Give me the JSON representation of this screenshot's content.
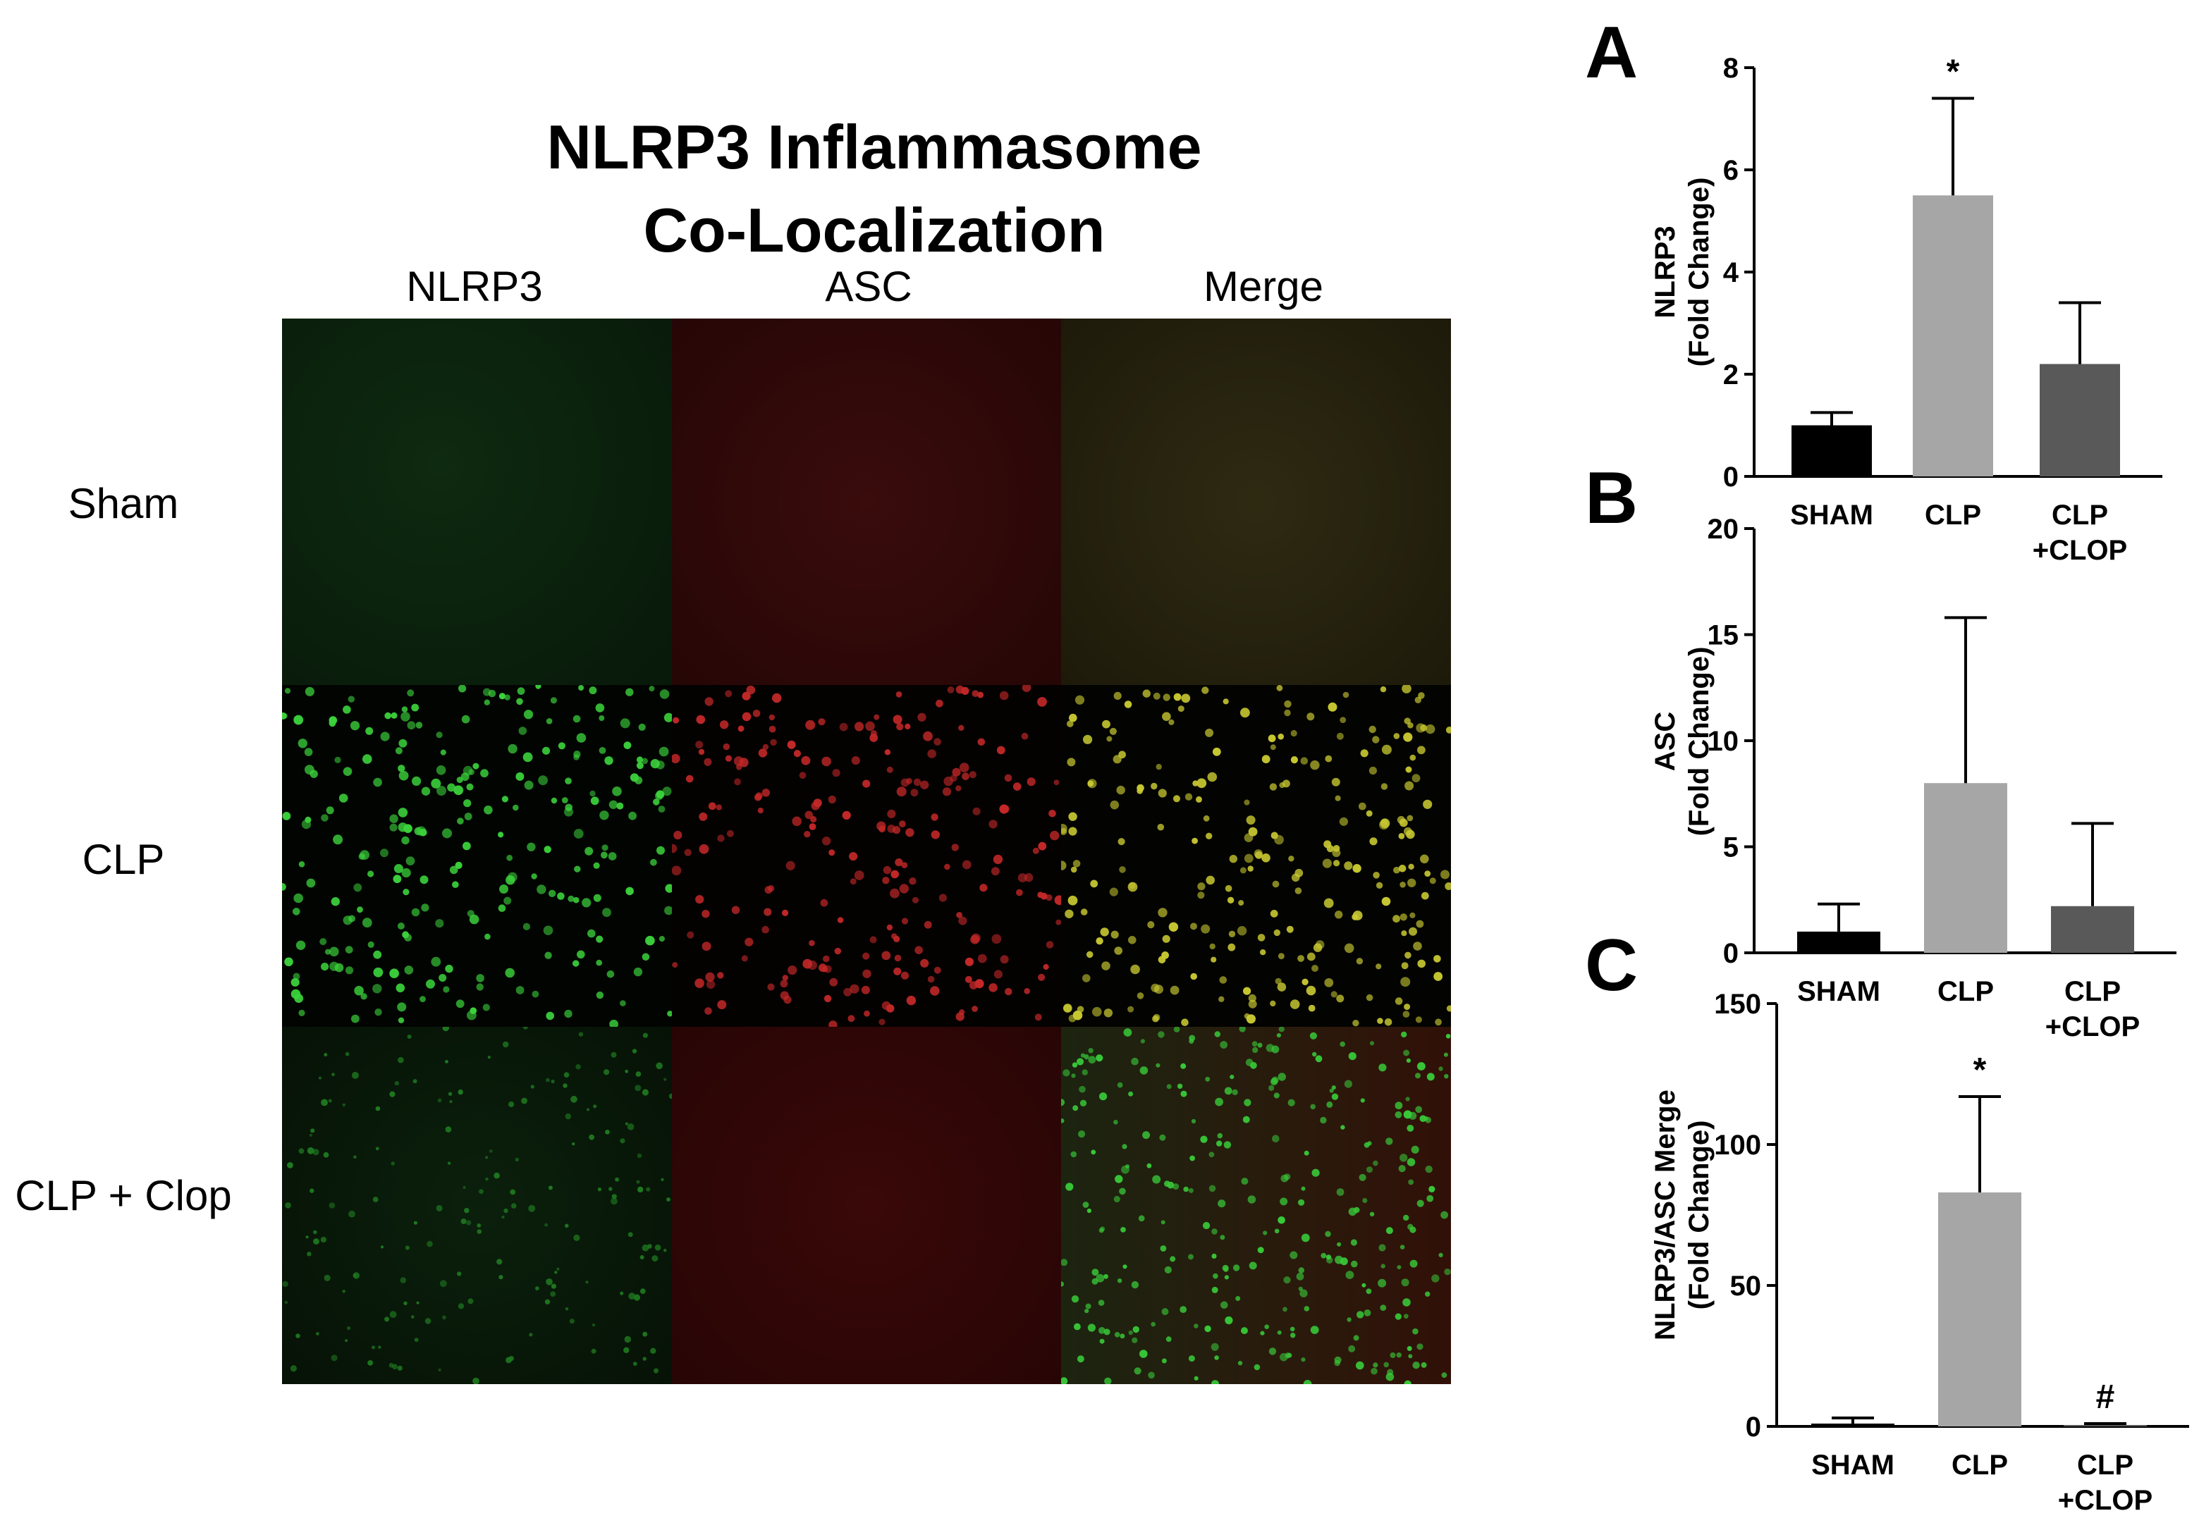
{
  "figure": {
    "title_line1": "NLRP3 Inflammasome",
    "title_line2": "Co-Localization",
    "columns": [
      "NLRP3",
      "ASC",
      "Merge"
    ],
    "rows": [
      "Sham",
      "CLP",
      "CLP + Clop"
    ]
  },
  "chart_data": [
    {
      "type": "bar",
      "panel_label": "A",
      "categories": [
        [
          "SHAM"
        ],
        [
          "CLP"
        ],
        [
          "CLP",
          "+CLOP"
        ]
      ],
      "values": [
        1.0,
        5.5,
        2.2
      ],
      "errors": [
        0.25,
        1.9,
        1.2
      ],
      "colors": [
        "#000000",
        "#a6a6a6",
        "#595959"
      ],
      "annotations": [
        "",
        "*",
        ""
      ],
      "ylabel": [
        "NLRP3",
        "(Fold Change)"
      ],
      "ylim": [
        0,
        8
      ],
      "yticks": [
        0,
        2,
        4,
        6,
        8
      ]
    },
    {
      "type": "bar",
      "panel_label": "B",
      "categories": [
        [
          "SHAM"
        ],
        [
          "CLP"
        ],
        [
          "CLP",
          "+CLOP"
        ]
      ],
      "values": [
        1.0,
        8.0,
        2.2
      ],
      "errors": [
        1.3,
        7.8,
        3.9
      ],
      "colors": [
        "#000000",
        "#a6a6a6",
        "#595959"
      ],
      "annotations": [
        "",
        "",
        ""
      ],
      "ylabel": [
        "ASC",
        "(Fold Change)"
      ],
      "ylim": [
        0,
        20
      ],
      "yticks": [
        0,
        5,
        10,
        15,
        20
      ]
    },
    {
      "type": "bar",
      "panel_label": "C",
      "categories": [
        [
          "SHAM"
        ],
        [
          "CLP"
        ],
        [
          "CLP",
          "+CLOP"
        ]
      ],
      "values": [
        1.0,
        83,
        0.5
      ],
      "errors": [
        2.0,
        34,
        0.5
      ],
      "colors": [
        "#000000",
        "#a6a6a6",
        "#595959"
      ],
      "annotations": [
        "",
        "*",
        "#"
      ],
      "ylabel": [
        "NLRP3/ASC Merge",
        "(Fold Change)"
      ],
      "ylim": [
        0,
        150
      ],
      "yticks": [
        0,
        50,
        100,
        150
      ]
    }
  ]
}
